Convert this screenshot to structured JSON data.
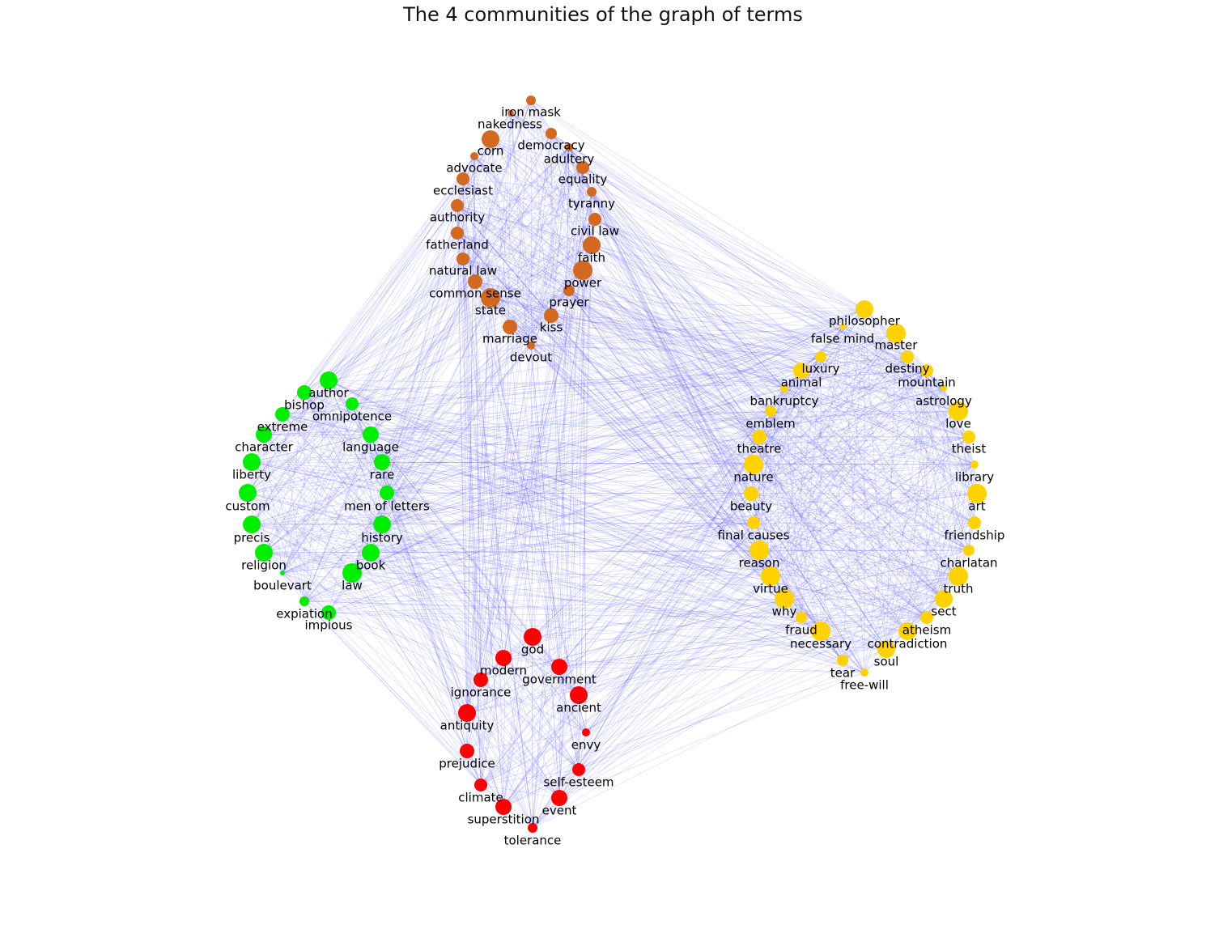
{
  "title": "The 4 communities of the graph of terms",
  "colors": {
    "edge": "#3a3aff",
    "community_orange": "#d2691e",
    "community_yellow": "#ffd200",
    "community_green": "#00ee00",
    "community_red": "#ff0000",
    "label": "#000000"
  },
  "communities": [
    {
      "id": "orange",
      "color": "#d2691e",
      "nodes": [
        "iron mask",
        "nakedness",
        "democracy",
        "corn",
        "adultery",
        "advocate",
        "equality",
        "ecclesiast",
        "tyranny",
        "authority",
        "civil law",
        "fatherland",
        "faith",
        "natural law",
        "power",
        "common sense",
        "prayer",
        "state",
        "kiss",
        "marriage",
        "devout"
      ]
    },
    {
      "id": "yellow",
      "color": "#ffd200",
      "nodes": [
        "philosopher",
        "false mind",
        "master",
        "luxury",
        "destiny",
        "animal",
        "mountain",
        "bankruptcy",
        "astrology",
        "emblem",
        "love",
        "theatre",
        "theist",
        "nature",
        "library",
        "beauty",
        "art",
        "final causes",
        "friendship",
        "reason",
        "charlatan",
        "virtue",
        "truth",
        "why",
        "sect",
        "fraud",
        "atheism",
        "necessary",
        "contradiction",
        "soul",
        "tear",
        "free-will"
      ]
    },
    {
      "id": "green",
      "color": "#00ee00",
      "nodes": [
        "author",
        "bishop",
        "omnipotence",
        "extreme",
        "character",
        "language",
        "liberty",
        "rare",
        "custom",
        "men of letters",
        "precis",
        "history",
        "religion",
        "book",
        "boulevart",
        "law",
        "expiation",
        "impious"
      ]
    },
    {
      "id": "red",
      "color": "#ff0000",
      "nodes": [
        "god",
        "modern",
        "government",
        "ignorance",
        "ancient",
        "antiquity",
        "envy",
        "prejudice",
        "self-esteem",
        "climate",
        "event",
        "superstition",
        "tolerance"
      ]
    }
  ]
}
